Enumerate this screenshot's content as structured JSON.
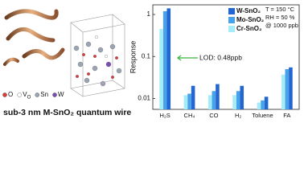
{
  "caption": "sub-3 nm M-SnO₂ quantum wire",
  "atom_legend": [
    {
      "label": "O",
      "color": "#d93a3a"
    },
    {
      "label": "V",
      "sub": "O",
      "color": "#ffffff"
    },
    {
      "label": "Sn",
      "color": "#9aa4b4"
    },
    {
      "label": "W",
      "color": "#7a4fb0"
    }
  ],
  "chart_data": {
    "type": "bar",
    "ylabel": "Response",
    "log_y": true,
    "categories": [
      "H₂S",
      "CH₄",
      "CO",
      "H₂",
      "Toluene",
      "FA"
    ],
    "series": [
      {
        "name": "W-SnO₂",
        "color": "#2466cf",
        "values": [
          1.4,
          0.02,
          0.022,
          0.02,
          0.011,
          0.055
        ]
      },
      {
        "name": "Mo-SnO₂",
        "color": "#47a2ea",
        "values": [
          1.2,
          0.013,
          0.015,
          0.015,
          0.009,
          0.05
        ]
      },
      {
        "name": "Cr-SnO₂",
        "color": "#a6ecf8",
        "values": [
          0.45,
          0.012,
          0.012,
          0.012,
          0.008,
          0.037
        ]
      }
    ],
    "ylim": [
      0.0055,
      1.7
    ],
    "yticks": [
      0.01,
      0.1,
      1
    ],
    "conditions": [
      "T = 150 °C",
      "RH = 50 %",
      "@ 1000 ppb"
    ],
    "annotation": {
      "text": "LOD: 0.48ppb",
      "color": "#3cb43c"
    }
  }
}
